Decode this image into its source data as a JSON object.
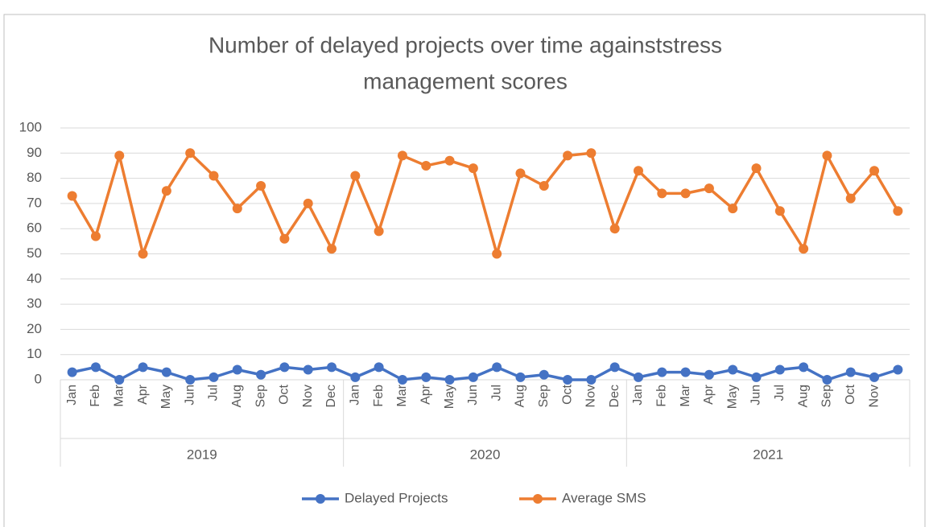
{
  "chart_data": {
    "type": "line",
    "title": [
      "Number of delayed projects over time againststress",
      "management scores"
    ],
    "category_groups": [
      {
        "name": "2019",
        "categories": [
          "Jan",
          "Feb",
          "Mar",
          "Apr",
          "May",
          "Jun",
          "Jul",
          "Aug",
          "Sep",
          "Oct",
          "Nov",
          "Dec"
        ]
      },
      {
        "name": "2020",
        "categories": [
          "Jan",
          "Feb",
          "Mar",
          "Apr",
          "May",
          "Jun",
          "Jul",
          "Aug",
          "Sep",
          "Oct",
          "Nov",
          "Dec"
        ]
      },
      {
        "name": "2021",
        "categories": [
          "Jan",
          "Feb",
          "Mar",
          "Apr",
          "May",
          "Jun",
          "Jul",
          "Aug",
          "Sep",
          "Oct",
          "Nov",
          null
        ]
      }
    ],
    "series": [
      {
        "name": "Delayed Projects",
        "color": "#4472c4",
        "values": [
          3,
          5,
          0,
          5,
          3,
          0,
          1,
          4,
          2,
          5,
          4,
          5,
          1,
          5,
          0,
          1,
          0,
          1,
          5,
          1,
          2,
          0,
          0,
          5,
          1,
          3,
          3,
          2,
          4,
          1,
          4,
          5,
          0,
          3,
          1,
          4
        ]
      },
      {
        "name": "Average SMS",
        "color": "#ed7d31",
        "values": [
          73,
          57,
          89,
          50,
          75,
          90,
          81,
          68,
          77,
          56,
          70,
          52,
          81,
          59,
          89,
          85,
          87,
          84,
          50,
          82,
          77,
          89,
          90,
          60,
          83,
          74,
          74,
          76,
          68,
          84,
          67,
          52,
          89,
          72,
          83,
          67
        ]
      }
    ],
    "ylim": [
      0,
      100
    ],
    "yticks": [
      0,
      10,
      20,
      30,
      40,
      50,
      60,
      70,
      80,
      90,
      100
    ],
    "grid": true,
    "legend": "bottom"
  }
}
